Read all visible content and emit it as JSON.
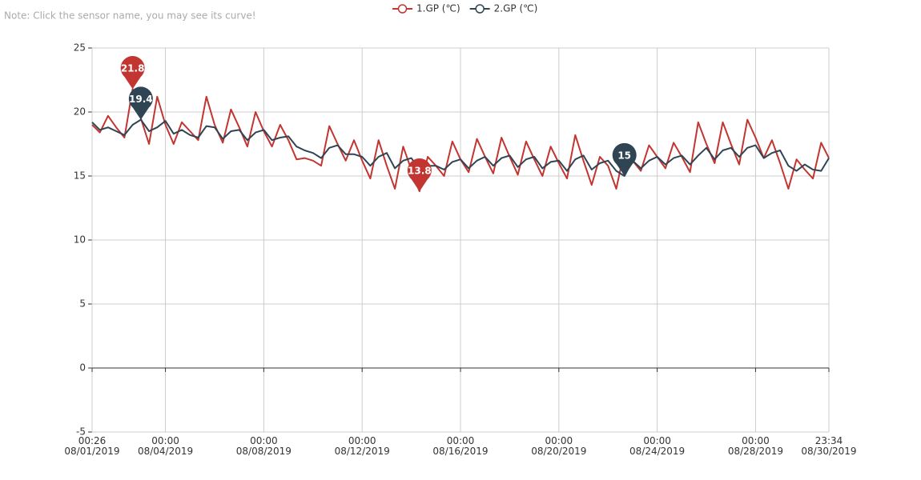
{
  "note": "Note: Click the sensor name, you may see its curve!",
  "chart_data": {
    "type": "line",
    "x": [
      "2019-08-01 00:26",
      "2019-08-01 08:00",
      "2019-08-01 16:00",
      "2019-08-02 00:00",
      "2019-08-02 08:00",
      "2019-08-02 16:00",
      "2019-08-03 00:00",
      "2019-08-03 08:00",
      "2019-08-03 16:00",
      "2019-08-04 00:00",
      "2019-08-04 08:00",
      "2019-08-04 16:00",
      "2019-08-05 00:00",
      "2019-08-05 08:00",
      "2019-08-05 16:00",
      "2019-08-06 00:00",
      "2019-08-06 08:00",
      "2019-08-06 16:00",
      "2019-08-07 00:00",
      "2019-08-07 08:00",
      "2019-08-07 16:00",
      "2019-08-08 00:00",
      "2019-08-08 08:00",
      "2019-08-08 16:00",
      "2019-08-09 00:00",
      "2019-08-09 08:00",
      "2019-08-09 16:00",
      "2019-08-10 00:00",
      "2019-08-10 08:00",
      "2019-08-10 16:00",
      "2019-08-11 00:00",
      "2019-08-11 08:00",
      "2019-08-11 16:00",
      "2019-08-12 00:00",
      "2019-08-12 08:00",
      "2019-08-12 16:00",
      "2019-08-13 00:00",
      "2019-08-13 08:00",
      "2019-08-13 16:00",
      "2019-08-14 00:00",
      "2019-08-14 08:00",
      "2019-08-14 16:00",
      "2019-08-15 00:00",
      "2019-08-15 08:00",
      "2019-08-15 16:00",
      "2019-08-16 00:00",
      "2019-08-16 08:00",
      "2019-08-16 16:00",
      "2019-08-17 00:00",
      "2019-08-17 08:00",
      "2019-08-17 16:00",
      "2019-08-18 00:00",
      "2019-08-18 08:00",
      "2019-08-18 16:00",
      "2019-08-19 00:00",
      "2019-08-19 08:00",
      "2019-08-19 16:00",
      "2019-08-20 00:00",
      "2019-08-20 08:00",
      "2019-08-20 16:00",
      "2019-08-21 00:00",
      "2019-08-21 08:00",
      "2019-08-21 16:00",
      "2019-08-22 00:00",
      "2019-08-22 08:00",
      "2019-08-22 16:00",
      "2019-08-23 00:00",
      "2019-08-23 08:00",
      "2019-08-23 16:00",
      "2019-08-24 00:00",
      "2019-08-24 08:00",
      "2019-08-24 16:00",
      "2019-08-25 00:00",
      "2019-08-25 08:00",
      "2019-08-25 16:00",
      "2019-08-26 00:00",
      "2019-08-26 08:00",
      "2019-08-26 16:00",
      "2019-08-27 00:00",
      "2019-08-27 08:00",
      "2019-08-27 16:00",
      "2019-08-28 00:00",
      "2019-08-28 08:00",
      "2019-08-28 16:00",
      "2019-08-29 00:00",
      "2019-08-29 08:00",
      "2019-08-29 16:00",
      "2019-08-30 00:00",
      "2019-08-30 08:00",
      "2019-08-30 16:00",
      "2019-08-30 23:34"
    ],
    "series": [
      {
        "name": "1.GP (℃)",
        "color": "#c23531",
        "values": [
          19.0,
          18.4,
          19.7,
          18.8,
          18.0,
          21.8,
          19.5,
          17.5,
          21.2,
          19.0,
          17.5,
          19.2,
          18.5,
          17.8,
          21.2,
          19.0,
          17.6,
          20.2,
          18.8,
          17.3,
          20.0,
          18.5,
          17.3,
          19.0,
          17.8,
          16.3,
          16.4,
          16.2,
          15.8,
          18.9,
          17.5,
          16.2,
          17.8,
          16.2,
          14.8,
          17.8,
          15.8,
          14.0,
          17.3,
          15.5,
          13.8,
          16.5,
          15.8,
          15.0,
          17.7,
          16.3,
          15.3,
          17.9,
          16.5,
          15.2,
          18.0,
          16.5,
          15.1,
          17.7,
          16.3,
          15.0,
          17.3,
          16.0,
          14.8,
          18.2,
          16.2,
          14.3,
          16.5,
          15.8,
          14.0,
          17.0,
          16.2,
          15.4,
          17.4,
          16.5,
          15.6,
          17.6,
          16.5,
          15.3,
          19.2,
          17.5,
          16.0,
          19.2,
          17.5,
          15.9,
          19.4,
          18.0,
          16.4,
          17.8,
          16.0,
          14.0,
          16.3,
          15.5,
          14.8,
          17.6,
          16.4
        ],
        "mark_points": [
          {
            "x": "2019-08-02 16:00",
            "value": 21.8
          },
          {
            "x": "2019-08-14 08:00",
            "value": 13.8
          }
        ]
      },
      {
        "name": "2.GP (℃)",
        "color": "#2f4554",
        "values": [
          19.2,
          18.6,
          18.8,
          18.5,
          18.2,
          19.0,
          19.4,
          18.5,
          18.8,
          19.3,
          18.3,
          18.6,
          18.2,
          18.0,
          18.9,
          18.8,
          17.9,
          18.5,
          18.6,
          17.8,
          18.4,
          18.6,
          17.8,
          18.0,
          18.1,
          17.3,
          17.0,
          16.8,
          16.4,
          17.2,
          17.4,
          16.7,
          16.7,
          16.5,
          15.8,
          16.5,
          16.8,
          15.6,
          16.2,
          16.4,
          15.5,
          15.8,
          15.8,
          15.5,
          16.1,
          16.3,
          15.6,
          16.2,
          16.5,
          15.8,
          16.4,
          16.6,
          15.7,
          16.3,
          16.5,
          15.6,
          16.1,
          16.2,
          15.4,
          16.3,
          16.6,
          15.5,
          16.0,
          16.2,
          15.4,
          15.0,
          16.2,
          15.6,
          16.2,
          16.5,
          15.9,
          16.4,
          16.6,
          15.9,
          16.6,
          17.2,
          16.3,
          17.0,
          17.2,
          16.5,
          17.2,
          17.4,
          16.4,
          16.8,
          17.0,
          15.8,
          15.4,
          15.9,
          15.5,
          15.4,
          16.4
        ],
        "mark_points": [
          {
            "x": "2019-08-03 00:00",
            "value": 19.4
          },
          {
            "x": "2019-08-22 16:00",
            "value": 15
          }
        ]
      }
    ],
    "xlim": [
      "2019-08-01 00:26",
      "2019-08-30 23:34"
    ],
    "xticks": [
      {
        "value": "2019-08-01 00:26",
        "label": "00:26\n08/01/2019"
      },
      {
        "value": "2019-08-04 00:00",
        "label": "00:00\n08/04/2019"
      },
      {
        "value": "2019-08-08 00:00",
        "label": "00:00\n08/08/2019"
      },
      {
        "value": "2019-08-12 00:00",
        "label": "00:00\n08/12/2019"
      },
      {
        "value": "2019-08-16 00:00",
        "label": "00:00\n08/16/2019"
      },
      {
        "value": "2019-08-20 00:00",
        "label": "00:00\n08/20/2019"
      },
      {
        "value": "2019-08-24 00:00",
        "label": "00:00\n08/24/2019"
      },
      {
        "value": "2019-08-28 00:00",
        "label": "00:00\n08/28/2019"
      },
      {
        "value": "2019-08-30 23:34",
        "label": "23:34\n08/30/2019"
      }
    ],
    "ylim": [
      -5,
      25
    ],
    "yticks": [
      -5,
      0,
      5,
      10,
      15,
      20,
      25
    ],
    "grid": true,
    "legend": "top"
  }
}
